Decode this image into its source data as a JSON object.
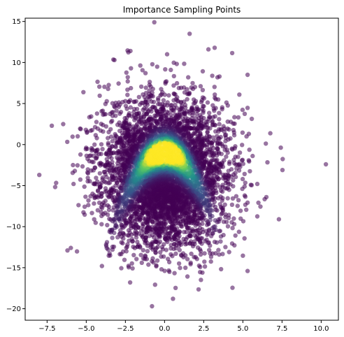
{
  "chart_data": {
    "type": "scatter",
    "title": "Importance Sampling Points",
    "xlabel": "",
    "ylabel": "",
    "xlim": [
      -8.9,
      11.1
    ],
    "ylim": [
      -21.4,
      15.4
    ],
    "xticks": [
      -7.5,
      -5.0,
      -2.5,
      0.0,
      2.5,
      5.0,
      7.5,
      10.0
    ],
    "xtick_labels": [
      "−7.5",
      "−5.0",
      "−2.5",
      "0.0",
      "2.5",
      "5.0",
      "7.5",
      "10.0"
    ],
    "yticks": [
      -20,
      -15,
      -10,
      -5,
      0,
      5,
      10,
      15
    ],
    "ytick_labels": [
      "−20",
      "−15",
      "−10",
      "−5",
      "0",
      "5",
      "10",
      "15"
    ],
    "grid": false,
    "legend": "none",
    "colormap": "viridis",
    "point_color_low": "#440154",
    "point_color_high": "#fde725",
    "point_alpha": 0.55,
    "distribution": {
      "n_points": 5000,
      "x_mean": 0.0,
      "x_std": 2.0,
      "y_mean": -3.5,
      "y_std": 4.5,
      "banana_ridge": "y ≈ -1 - x²/1.2",
      "densest_point": [
        0.0,
        -1.0
      ]
    },
    "notable_points": [
      {
        "x": 1.6,
        "y": 13.5
      },
      {
        "x": 3.2,
        "y": 11.8
      },
      {
        "x": 2.8,
        "y": 11.6
      },
      {
        "x": 10.3,
        "y": -2.4
      },
      {
        "x": -8.0,
        "y": -3.7
      },
      {
        "x": -7.2,
        "y": 2.3
      },
      {
        "x": -0.8,
        "y": -19.7
      },
      {
        "x": 7.3,
        "y": -9.1
      },
      {
        "x": 5.3,
        "y": -15.4
      },
      {
        "x": 5.3,
        "y": 8.5
      },
      {
        "x": -6.2,
        "y": -12.9
      },
      {
        "x": -3.2,
        "y": 10.3
      },
      {
        "x": -2.2,
        "y": -16.8
      },
      {
        "x": 6.5,
        "y": -6.4
      },
      {
        "x": -4.0,
        "y": -14.8
      }
    ]
  }
}
